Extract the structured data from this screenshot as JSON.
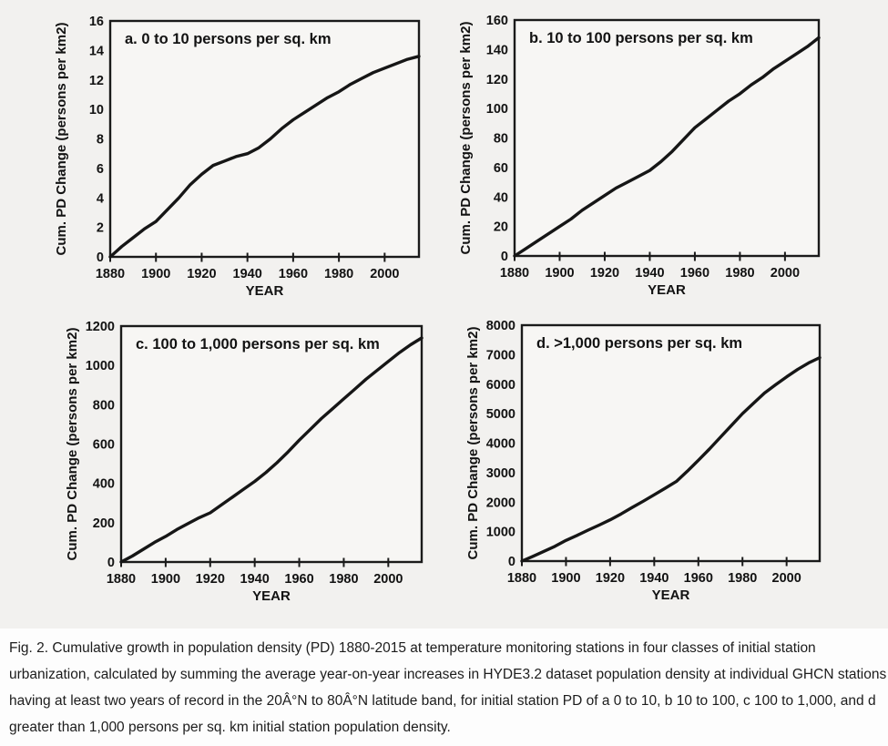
{
  "colors": {
    "figure_bg": "#f2f1ef",
    "plot_bg": "#f7f6f4",
    "frame": "#1a1a1a",
    "line": "#161616",
    "text": "#121212"
  },
  "chart_data": [
    {
      "type": "line",
      "panel": "a",
      "title": "a. 0 to 10 persons per sq. km",
      "xlabel": "YEAR",
      "ylabel": "Cum. PD Change (persons per km2)",
      "xlim": [
        1880,
        2015
      ],
      "ylim": [
        0,
        16
      ],
      "xticks": [
        1880,
        1900,
        1920,
        1940,
        1960,
        1980,
        2000
      ],
      "yticks": [
        0,
        2,
        4,
        6,
        8,
        10,
        12,
        14,
        16
      ],
      "x": [
        1880,
        1885,
        1890,
        1895,
        1900,
        1905,
        1910,
        1915,
        1920,
        1925,
        1930,
        1935,
        1940,
        1945,
        1950,
        1955,
        1960,
        1965,
        1970,
        1975,
        1980,
        1985,
        1990,
        1995,
        2000,
        2005,
        2010,
        2015
      ],
      "y": [
        0,
        0.7,
        1.3,
        1.9,
        2.4,
        3.2,
        4.0,
        4.9,
        5.6,
        6.2,
        6.5,
        6.8,
        7.0,
        7.4,
        8.0,
        8.7,
        9.3,
        9.8,
        10.3,
        10.8,
        11.2,
        11.7,
        12.1,
        12.5,
        12.8,
        13.1,
        13.4,
        13.6
      ],
      "legend": "none",
      "grid": false
    },
    {
      "type": "line",
      "panel": "b",
      "title": "b. 10 to 100 persons per sq. km",
      "xlabel": "YEAR",
      "ylabel": "Cum. PD Change (persons per km2)",
      "xlim": [
        1880,
        2015
      ],
      "ylim": [
        0,
        160
      ],
      "xticks": [
        1880,
        1900,
        1920,
        1940,
        1960,
        1980,
        2000
      ],
      "yticks": [
        0,
        20,
        40,
        60,
        80,
        100,
        120,
        140,
        160
      ],
      "x": [
        1880,
        1885,
        1890,
        1895,
        1900,
        1905,
        1910,
        1915,
        1920,
        1925,
        1930,
        1935,
        1940,
        1945,
        1950,
        1955,
        1960,
        1965,
        1970,
        1975,
        1980,
        1985,
        1990,
        1995,
        2000,
        2005,
        2010,
        2015
      ],
      "y": [
        0,
        5,
        10,
        15,
        20,
        25,
        31,
        36,
        41,
        46,
        50,
        54,
        58,
        64,
        71,
        79,
        87,
        93,
        99,
        105,
        110,
        116,
        121,
        127,
        132,
        137,
        142,
        148
      ],
      "legend": "none",
      "grid": false
    },
    {
      "type": "line",
      "panel": "c",
      "title": "c. 100 to 1,000 persons per sq. km",
      "xlabel": "YEAR",
      "ylabel": "Cum. PD Change (persons per km2)",
      "xlim": [
        1880,
        2015
      ],
      "ylim": [
        0,
        1200
      ],
      "xticks": [
        1880,
        1900,
        1920,
        1940,
        1960,
        1980,
        2000
      ],
      "yticks": [
        0,
        200,
        400,
        600,
        800,
        1000,
        1200
      ],
      "x": [
        1880,
        1885,
        1890,
        1895,
        1900,
        1905,
        1910,
        1915,
        1920,
        1925,
        1930,
        1935,
        1940,
        1945,
        1950,
        1955,
        1960,
        1965,
        1970,
        1975,
        1980,
        1985,
        1990,
        1995,
        2000,
        2005,
        2010,
        2015
      ],
      "y": [
        0,
        30,
        65,
        100,
        130,
        165,
        195,
        225,
        250,
        290,
        330,
        370,
        410,
        455,
        505,
        560,
        620,
        675,
        730,
        780,
        830,
        880,
        930,
        975,
        1020,
        1065,
        1105,
        1140
      ],
      "legend": "none",
      "grid": false
    },
    {
      "type": "line",
      "panel": "d",
      "title": "d. >1,000 persons per sq. km",
      "xlabel": "YEAR",
      "ylabel": "Cum. PD Change (persons per km2)",
      "xlim": [
        1880,
        2015
      ],
      "ylim": [
        0,
        8000
      ],
      "xticks": [
        1880,
        1900,
        1920,
        1940,
        1960,
        1980,
        2000
      ],
      "yticks": [
        0,
        1000,
        2000,
        3000,
        4000,
        5000,
        6000,
        7000,
        8000
      ],
      "x": [
        1880,
        1885,
        1890,
        1895,
        1900,
        1905,
        1910,
        1915,
        1920,
        1925,
        1930,
        1935,
        1940,
        1945,
        1950,
        1955,
        1960,
        1965,
        1970,
        1975,
        1980,
        1985,
        1990,
        1995,
        2000,
        2005,
        2010,
        2015
      ],
      "y": [
        0,
        160,
        330,
        500,
        700,
        870,
        1050,
        1220,
        1400,
        1600,
        1820,
        2030,
        2250,
        2470,
        2700,
        3050,
        3420,
        3800,
        4200,
        4600,
        5000,
        5350,
        5700,
        5980,
        6250,
        6500,
        6720,
        6900
      ],
      "legend": "none",
      "grid": false
    }
  ],
  "caption": {
    "lines": [
      "Fig. 2. Cumulative growth in population density (PD) 1880-2015 at temperature monitoring stations in four classes of initial station",
      "urbanization, calculated by summing the average year-on-year increases in HYDE3.2 dataset population density at individual GHCN stations",
      "having at least two years of record in the 20Â°N to 80Â°N latitude band, for initial station PD of a 0 to 10, b 10 to 100, c 100 to 1,000, and d",
      "greater than 1,000 persons per sq. km initial station population density."
    ]
  }
}
